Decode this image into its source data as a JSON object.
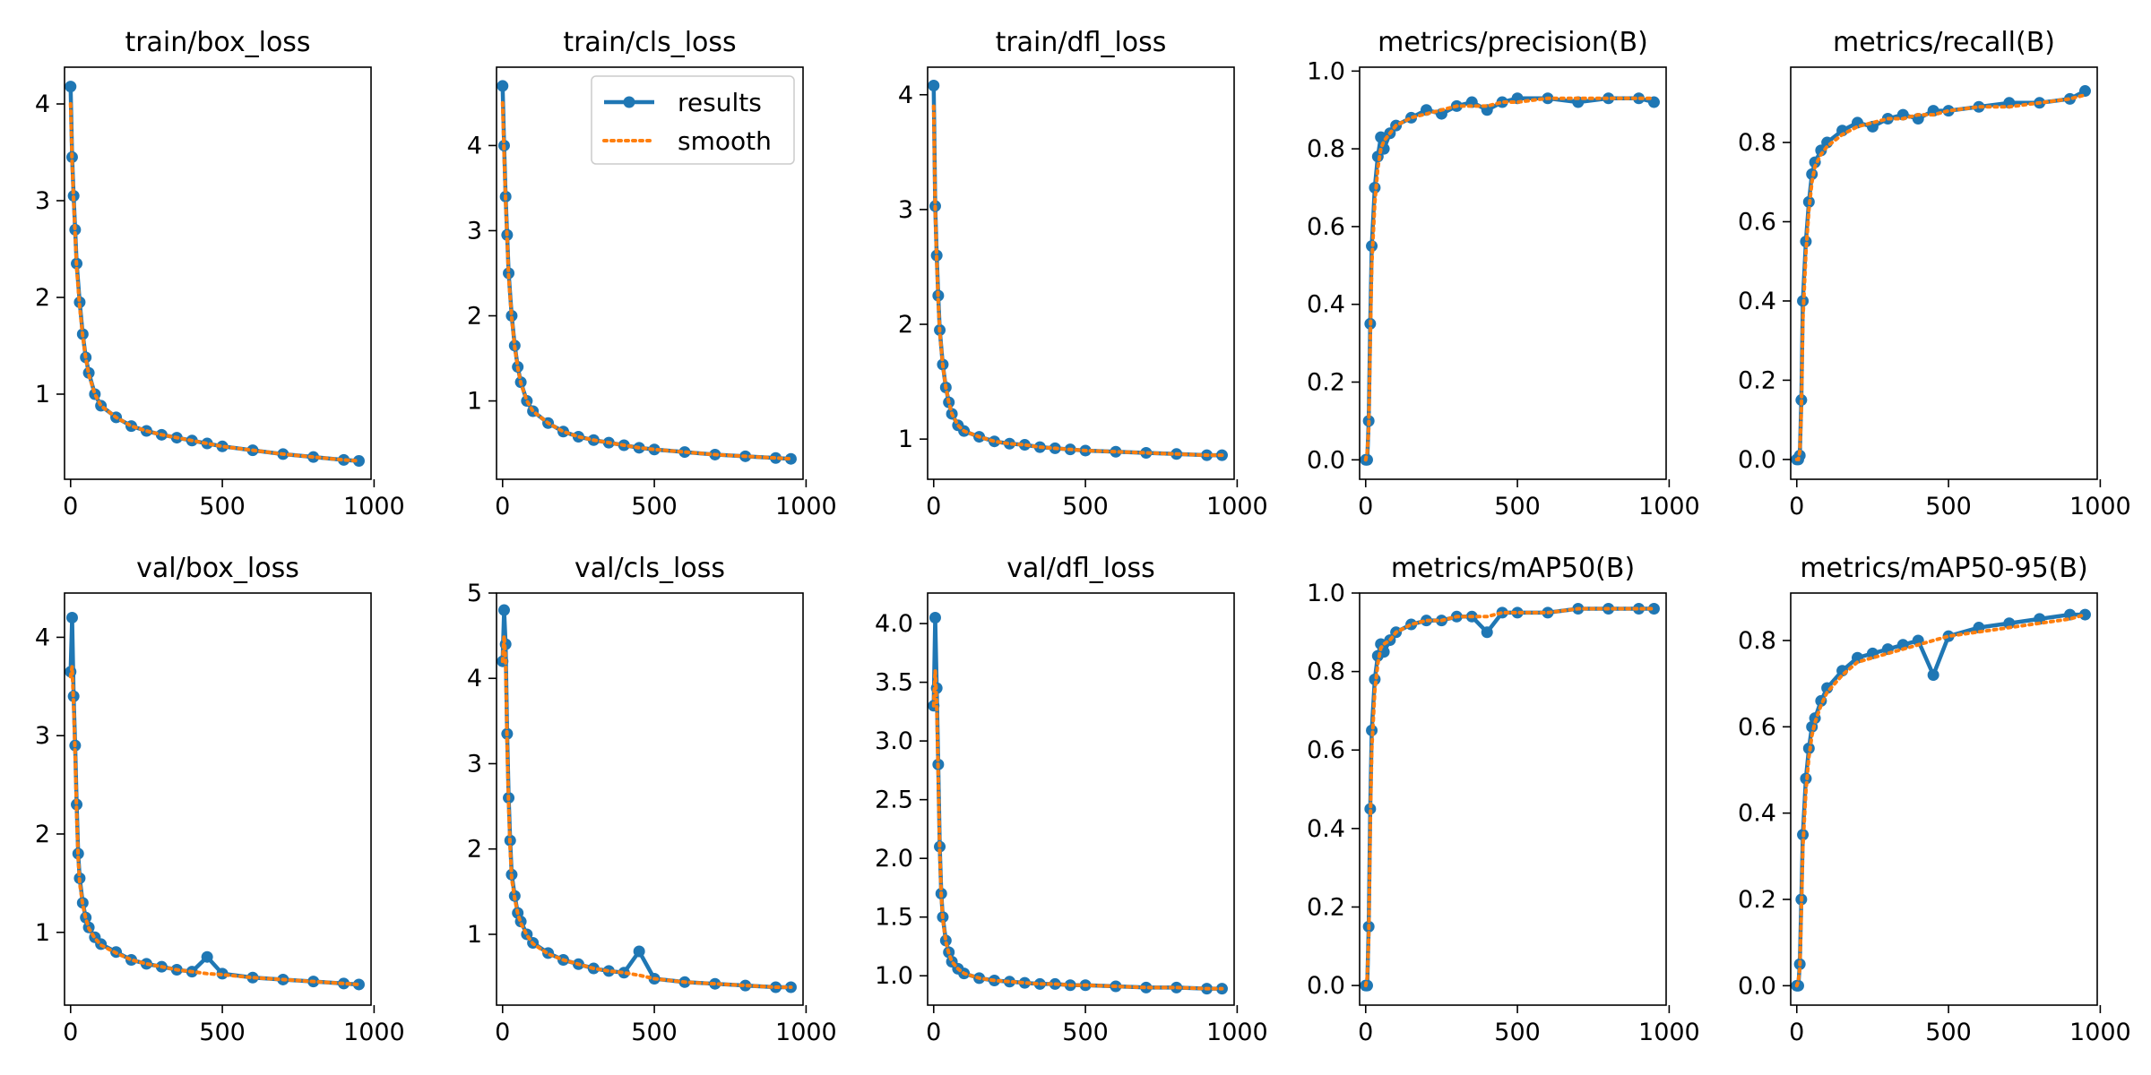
{
  "figure": {
    "legend": {
      "entries": [
        "results",
        "smooth"
      ],
      "placement": "top-right",
      "panel": 1
    },
    "colors": {
      "results": "#1f77b4",
      "smooth": "#ff7f0e",
      "axes": "#000000"
    }
  },
  "chart_data": [
    {
      "type": "line",
      "title": "train/box_loss",
      "xlabel": "",
      "ylabel": "",
      "xlim": [
        -20,
        990
      ],
      "ylim": [
        0.12,
        4.38
      ],
      "xticks": [
        0,
        500,
        1000
      ],
      "yticks": [
        1,
        2,
        3,
        4
      ],
      "x": [
        0,
        5,
        10,
        15,
        20,
        30,
        40,
        50,
        60,
        80,
        100,
        150,
        200,
        250,
        300,
        350,
        400,
        450,
        500,
        600,
        700,
        800,
        900,
        950
      ],
      "series": [
        {
          "name": "results",
          "values": [
            4.18,
            3.45,
            3.05,
            2.7,
            2.35,
            1.95,
            1.62,
            1.38,
            1.22,
            1.0,
            0.88,
            0.76,
            0.67,
            0.62,
            0.58,
            0.55,
            0.52,
            0.49,
            0.46,
            0.42,
            0.38,
            0.35,
            0.32,
            0.31
          ]
        },
        {
          "name": "smooth",
          "values": [
            4.0,
            3.4,
            3.0,
            2.65,
            2.3,
            1.9,
            1.6,
            1.37,
            1.2,
            1.0,
            0.88,
            0.76,
            0.67,
            0.62,
            0.58,
            0.55,
            0.52,
            0.49,
            0.46,
            0.42,
            0.38,
            0.35,
            0.32,
            0.31
          ]
        }
      ]
    },
    {
      "type": "line",
      "title": "train/cls_loss",
      "xlabel": "",
      "ylabel": "",
      "xlim": [
        -20,
        990
      ],
      "ylim": [
        0.08,
        4.92
      ],
      "xticks": [
        0,
        500,
        1000
      ],
      "yticks": [
        1,
        2,
        3,
        4
      ],
      "x": [
        0,
        5,
        10,
        15,
        20,
        30,
        40,
        50,
        60,
        80,
        100,
        150,
        200,
        250,
        300,
        350,
        400,
        450,
        500,
        600,
        700,
        800,
        900,
        950
      ],
      "series": [
        {
          "name": "results",
          "values": [
            4.7,
            4.0,
            3.4,
            2.95,
            2.5,
            2.0,
            1.65,
            1.4,
            1.22,
            1.0,
            0.88,
            0.74,
            0.64,
            0.58,
            0.54,
            0.51,
            0.48,
            0.45,
            0.43,
            0.4,
            0.37,
            0.35,
            0.33,
            0.32
          ]
        },
        {
          "name": "smooth",
          "values": [
            4.5,
            3.9,
            3.35,
            2.9,
            2.45,
            1.98,
            1.63,
            1.39,
            1.21,
            1.0,
            0.88,
            0.74,
            0.64,
            0.58,
            0.54,
            0.51,
            0.48,
            0.45,
            0.43,
            0.4,
            0.37,
            0.35,
            0.33,
            0.32
          ]
        }
      ]
    },
    {
      "type": "line",
      "title": "train/dfl_loss",
      "xlabel": "",
      "ylabel": "",
      "xlim": [
        -20,
        990
      ],
      "ylim": [
        0.65,
        4.24
      ],
      "xticks": [
        0,
        500,
        1000
      ],
      "yticks": [
        1,
        2,
        3,
        4
      ],
      "x": [
        0,
        5,
        10,
        15,
        20,
        30,
        40,
        50,
        60,
        80,
        100,
        150,
        200,
        250,
        300,
        350,
        400,
        450,
        500,
        600,
        700,
        800,
        900,
        950
      ],
      "series": [
        {
          "name": "results",
          "values": [
            4.08,
            3.03,
            2.6,
            2.25,
            1.95,
            1.65,
            1.45,
            1.32,
            1.22,
            1.12,
            1.07,
            1.02,
            0.98,
            0.96,
            0.95,
            0.93,
            0.92,
            0.91,
            0.9,
            0.89,
            0.88,
            0.87,
            0.86,
            0.86
          ]
        },
        {
          "name": "smooth",
          "values": [
            3.9,
            3.0,
            2.55,
            2.2,
            1.93,
            1.64,
            1.45,
            1.32,
            1.22,
            1.12,
            1.07,
            1.02,
            0.98,
            0.96,
            0.95,
            0.93,
            0.92,
            0.91,
            0.9,
            0.89,
            0.88,
            0.87,
            0.86,
            0.86
          ]
        }
      ]
    },
    {
      "type": "line",
      "title": "metrics/precision(B)",
      "xlabel": "",
      "ylabel": "",
      "xlim": [
        -20,
        990
      ],
      "ylim": [
        -0.05,
        1.01
      ],
      "xticks": [
        0,
        500,
        1000
      ],
      "yticks": [
        0.0,
        0.2,
        0.4,
        0.6,
        0.8,
        1.0
      ],
      "x": [
        0,
        5,
        10,
        15,
        20,
        30,
        40,
        50,
        60,
        80,
        100,
        150,
        200,
        250,
        300,
        350,
        400,
        450,
        500,
        600,
        700,
        800,
        900,
        950
      ],
      "series": [
        {
          "name": "results",
          "values": [
            0.0,
            0.0,
            0.1,
            0.35,
            0.55,
            0.7,
            0.78,
            0.83,
            0.8,
            0.84,
            0.86,
            0.88,
            0.9,
            0.89,
            0.91,
            0.92,
            0.9,
            0.92,
            0.93,
            0.93,
            0.92,
            0.93,
            0.93,
            0.92
          ]
        },
        {
          "name": "smooth",
          "values": [
            0.0,
            0.02,
            0.08,
            0.3,
            0.5,
            0.66,
            0.75,
            0.8,
            0.82,
            0.84,
            0.86,
            0.88,
            0.89,
            0.9,
            0.91,
            0.91,
            0.91,
            0.92,
            0.92,
            0.93,
            0.93,
            0.93,
            0.93,
            0.93
          ]
        }
      ]
    },
    {
      "type": "line",
      "title": "metrics/recall(B)",
      "xlabel": "",
      "ylabel": "",
      "xlim": [
        -20,
        990
      ],
      "ylim": [
        -0.05,
        0.99
      ],
      "xticks": [
        0,
        500,
        1000
      ],
      "yticks": [
        0.0,
        0.2,
        0.4,
        0.6,
        0.8
      ],
      "x": [
        0,
        5,
        10,
        15,
        20,
        30,
        40,
        50,
        60,
        80,
        100,
        150,
        200,
        250,
        300,
        350,
        400,
        450,
        500,
        600,
        700,
        800,
        900,
        950
      ],
      "series": [
        {
          "name": "results",
          "values": [
            0.0,
            0.0,
            0.01,
            0.15,
            0.4,
            0.55,
            0.65,
            0.72,
            0.75,
            0.78,
            0.8,
            0.83,
            0.85,
            0.84,
            0.86,
            0.87,
            0.86,
            0.88,
            0.88,
            0.89,
            0.9,
            0.9,
            0.91,
            0.93
          ]
        },
        {
          "name": "smooth",
          "values": [
            0.0,
            0.0,
            0.02,
            0.12,
            0.35,
            0.52,
            0.63,
            0.7,
            0.74,
            0.77,
            0.79,
            0.82,
            0.84,
            0.85,
            0.86,
            0.86,
            0.87,
            0.87,
            0.88,
            0.89,
            0.89,
            0.9,
            0.91,
            0.92
          ]
        }
      ]
    },
    {
      "type": "line",
      "title": "val/box_loss",
      "xlabel": "",
      "ylabel": "",
      "xlim": [
        -20,
        990
      ],
      "ylim": [
        0.26,
        4.45
      ],
      "xticks": [
        0,
        500,
        1000
      ],
      "yticks": [
        1,
        2,
        3,
        4
      ],
      "x": [
        0,
        5,
        10,
        15,
        20,
        25,
        30,
        40,
        50,
        60,
        80,
        100,
        150,
        200,
        250,
        300,
        350,
        400,
        450,
        500,
        600,
        700,
        800,
        900,
        950
      ],
      "series": [
        {
          "name": "results",
          "values": [
            3.65,
            4.2,
            3.4,
            2.9,
            2.3,
            1.8,
            1.55,
            1.3,
            1.15,
            1.05,
            0.95,
            0.88,
            0.8,
            0.72,
            0.68,
            0.65,
            0.62,
            0.6,
            0.75,
            0.58,
            0.54,
            0.52,
            0.5,
            0.48,
            0.47
          ]
        },
        {
          "name": "smooth",
          "values": [
            3.6,
            3.7,
            3.3,
            2.8,
            2.2,
            1.75,
            1.5,
            1.28,
            1.14,
            1.04,
            0.94,
            0.87,
            0.79,
            0.72,
            0.68,
            0.65,
            0.62,
            0.6,
            0.58,
            0.57,
            0.54,
            0.52,
            0.5,
            0.48,
            0.47
          ]
        }
      ]
    },
    {
      "type": "line",
      "title": "val/cls_loss",
      "xlabel": "",
      "ylabel": "",
      "xlim": [
        -20,
        990
      ],
      "ylim": [
        0.17,
        5.0
      ],
      "xticks": [
        0,
        500,
        1000
      ],
      "yticks": [
        1,
        2,
        3,
        4,
        5
      ],
      "x": [
        0,
        5,
        10,
        15,
        20,
        25,
        30,
        40,
        50,
        60,
        80,
        100,
        150,
        200,
        250,
        300,
        350,
        400,
        450,
        500,
        600,
        700,
        800,
        900,
        950
      ],
      "series": [
        {
          "name": "results",
          "values": [
            4.2,
            4.8,
            4.4,
            3.35,
            2.6,
            2.1,
            1.7,
            1.45,
            1.25,
            1.15,
            1.0,
            0.9,
            0.78,
            0.7,
            0.65,
            0.6,
            0.57,
            0.55,
            0.8,
            0.48,
            0.44,
            0.42,
            0.4,
            0.38,
            0.38
          ]
        },
        {
          "name": "smooth",
          "values": [
            4.2,
            4.5,
            4.2,
            3.2,
            2.5,
            2.0,
            1.65,
            1.42,
            1.24,
            1.13,
            0.99,
            0.89,
            0.77,
            0.7,
            0.65,
            0.6,
            0.57,
            0.55,
            0.52,
            0.48,
            0.44,
            0.42,
            0.4,
            0.38,
            0.38
          ]
        }
      ]
    },
    {
      "type": "line",
      "title": "val/dfl_loss",
      "xlabel": "",
      "ylabel": "",
      "xlim": [
        -20,
        990
      ],
      "ylim": [
        0.75,
        4.26
      ],
      "xticks": [
        0,
        500,
        1000
      ],
      "yticks": [
        1.0,
        1.5,
        2.0,
        2.5,
        3.0,
        3.5,
        4.0
      ],
      "x": [
        0,
        5,
        10,
        15,
        20,
        25,
        30,
        40,
        50,
        60,
        80,
        100,
        150,
        200,
        250,
        300,
        350,
        400,
        450,
        500,
        600,
        700,
        800,
        900,
        950
      ],
      "series": [
        {
          "name": "results",
          "values": [
            3.3,
            4.05,
            3.45,
            2.8,
            2.1,
            1.7,
            1.5,
            1.3,
            1.2,
            1.12,
            1.06,
            1.02,
            0.98,
            0.96,
            0.95,
            0.94,
            0.93,
            0.93,
            0.92,
            0.92,
            0.91,
            0.9,
            0.9,
            0.89,
            0.89
          ]
        },
        {
          "name": "smooth",
          "values": [
            3.3,
            3.6,
            3.3,
            2.7,
            2.05,
            1.68,
            1.48,
            1.29,
            1.19,
            1.12,
            1.06,
            1.02,
            0.98,
            0.96,
            0.95,
            0.94,
            0.93,
            0.93,
            0.92,
            0.92,
            0.91,
            0.9,
            0.9,
            0.89,
            0.89
          ]
        }
      ]
    },
    {
      "type": "line",
      "title": "metrics/mAP50(B)",
      "xlabel": "",
      "ylabel": "",
      "xlim": [
        -20,
        990
      ],
      "ylim": [
        -0.05,
        1.0
      ],
      "xticks": [
        0,
        500,
        1000
      ],
      "yticks": [
        0.0,
        0.2,
        0.4,
        0.6,
        0.8,
        1.0
      ],
      "x": [
        0,
        5,
        10,
        15,
        20,
        30,
        40,
        50,
        60,
        80,
        100,
        150,
        200,
        250,
        300,
        350,
        400,
        450,
        500,
        600,
        700,
        800,
        900,
        950
      ],
      "series": [
        {
          "name": "results",
          "values": [
            0.0,
            0.0,
            0.15,
            0.45,
            0.65,
            0.78,
            0.84,
            0.87,
            0.85,
            0.88,
            0.9,
            0.92,
            0.93,
            0.93,
            0.94,
            0.94,
            0.9,
            0.95,
            0.95,
            0.95,
            0.96,
            0.96,
            0.96,
            0.96
          ]
        },
        {
          "name": "smooth",
          "values": [
            0.0,
            0.02,
            0.12,
            0.4,
            0.6,
            0.75,
            0.82,
            0.86,
            0.87,
            0.88,
            0.9,
            0.92,
            0.93,
            0.93,
            0.94,
            0.94,
            0.94,
            0.95,
            0.95,
            0.95,
            0.96,
            0.96,
            0.96,
            0.96
          ]
        }
      ]
    },
    {
      "type": "line",
      "title": "metrics/mAP50-95(B)",
      "xlabel": "",
      "ylabel": "",
      "xlim": [
        -20,
        990
      ],
      "ylim": [
        -0.045,
        0.91
      ],
      "xticks": [
        0,
        500,
        1000
      ],
      "yticks": [
        0.0,
        0.2,
        0.4,
        0.6,
        0.8
      ],
      "x": [
        0,
        5,
        10,
        15,
        20,
        30,
        40,
        50,
        60,
        80,
        100,
        150,
        200,
        250,
        300,
        350,
        400,
        450,
        500,
        600,
        700,
        800,
        900,
        950
      ],
      "series": [
        {
          "name": "results",
          "values": [
            0.0,
            0.0,
            0.05,
            0.2,
            0.35,
            0.48,
            0.55,
            0.6,
            0.62,
            0.66,
            0.69,
            0.73,
            0.76,
            0.77,
            0.78,
            0.79,
            0.8,
            0.72,
            0.81,
            0.83,
            0.84,
            0.85,
            0.86,
            0.86
          ]
        },
        {
          "name": "smooth",
          "values": [
            0.0,
            0.01,
            0.04,
            0.17,
            0.32,
            0.45,
            0.53,
            0.58,
            0.61,
            0.65,
            0.68,
            0.72,
            0.75,
            0.76,
            0.77,
            0.78,
            0.79,
            0.8,
            0.81,
            0.82,
            0.83,
            0.84,
            0.85,
            0.86
          ]
        }
      ]
    }
  ]
}
